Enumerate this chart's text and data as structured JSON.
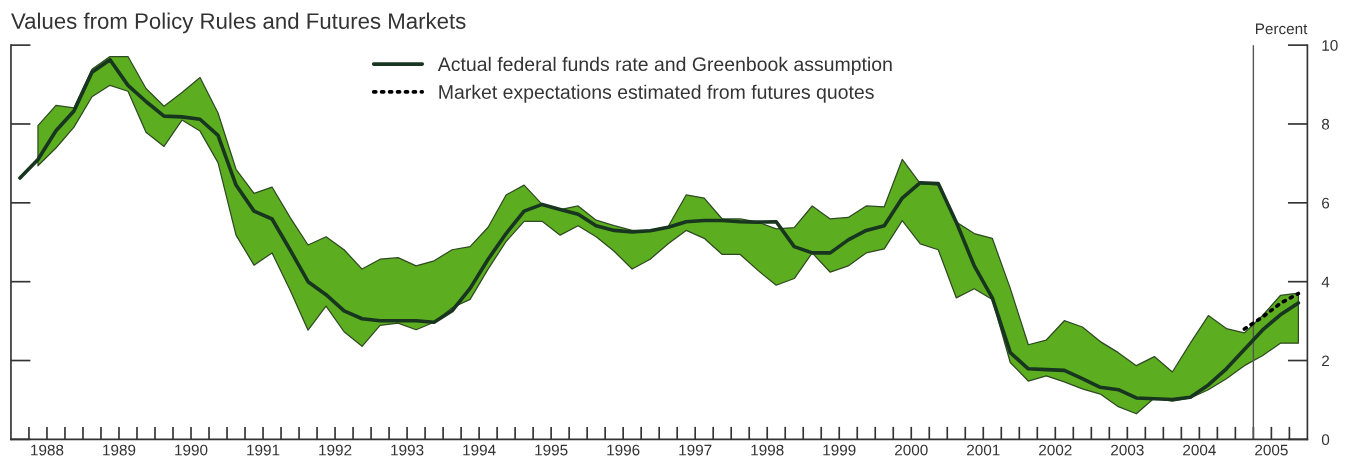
{
  "chart_data": {
    "type": "line",
    "title": "Values from Policy Rules and Futures Markets",
    "ylabel": "Percent",
    "xlim": [
      1988,
      2006
    ],
    "ylim": [
      0,
      10
    ],
    "yticks": [
      0,
      2,
      4,
      6,
      8,
      10
    ],
    "xticks": [
      {
        "value": 1988.25,
        "label": null
      },
      {
        "value": 1988.5,
        "label": "1988"
      },
      {
        "value": 1988.75,
        "label": null
      },
      {
        "value": 1989,
        "label": null
      },
      {
        "value": 1989.25,
        "label": null
      },
      {
        "value": 1989.5,
        "label": "1989"
      },
      {
        "value": 1989.75,
        "label": null
      },
      {
        "value": 1990,
        "label": null
      },
      {
        "value": 1990.25,
        "label": null
      },
      {
        "value": 1990.5,
        "label": "1990"
      },
      {
        "value": 1990.75,
        "label": null
      },
      {
        "value": 1991,
        "label": null
      },
      {
        "value": 1991.25,
        "label": null
      },
      {
        "value": 1991.5,
        "label": "1991"
      },
      {
        "value": 1991.75,
        "label": null
      },
      {
        "value": 1992,
        "label": null
      },
      {
        "value": 1992.25,
        "label": null
      },
      {
        "value": 1992.5,
        "label": "1992"
      },
      {
        "value": 1992.75,
        "label": null
      },
      {
        "value": 1993,
        "label": null
      },
      {
        "value": 1993.25,
        "label": null
      },
      {
        "value": 1993.5,
        "label": "1993"
      },
      {
        "value": 1993.75,
        "label": null
      },
      {
        "value": 1994,
        "label": null
      },
      {
        "value": 1994.25,
        "label": null
      },
      {
        "value": 1994.5,
        "label": "1994"
      },
      {
        "value": 1994.75,
        "label": null
      },
      {
        "value": 1995,
        "label": null
      },
      {
        "value": 1995.25,
        "label": null
      },
      {
        "value": 1995.5,
        "label": "1995"
      },
      {
        "value": 1995.75,
        "label": null
      },
      {
        "value": 1996,
        "label": null
      },
      {
        "value": 1996.25,
        "label": null
      },
      {
        "value": 1996.5,
        "label": "1996"
      },
      {
        "value": 1996.75,
        "label": null
      },
      {
        "value": 1997,
        "label": null
      },
      {
        "value": 1997.25,
        "label": null
      },
      {
        "value": 1997.5,
        "label": "1997"
      },
      {
        "value": 1997.75,
        "label": null
      },
      {
        "value": 1998,
        "label": null
      },
      {
        "value": 1998.25,
        "label": null
      },
      {
        "value": 1998.5,
        "label": "1998"
      },
      {
        "value": 1998.75,
        "label": null
      },
      {
        "value": 1999,
        "label": null
      },
      {
        "value": 1999.25,
        "label": null
      },
      {
        "value": 1999.5,
        "label": "1999"
      },
      {
        "value": 1999.75,
        "label": null
      },
      {
        "value": 2000,
        "label": null
      },
      {
        "value": 2000.25,
        "label": null
      },
      {
        "value": 2000.5,
        "label": "2000"
      },
      {
        "value": 2000.75,
        "label": null
      },
      {
        "value": 2001,
        "label": null
      },
      {
        "value": 2001.25,
        "label": null
      },
      {
        "value": 2001.5,
        "label": "2001"
      },
      {
        "value": 2001.75,
        "label": null
      },
      {
        "value": 2002,
        "label": null
      },
      {
        "value": 2002.25,
        "label": null
      },
      {
        "value": 2002.5,
        "label": "2002"
      },
      {
        "value": 2002.75,
        "label": null
      },
      {
        "value": 2003,
        "label": null
      },
      {
        "value": 2003.25,
        "label": null
      },
      {
        "value": 2003.5,
        "label": "2003"
      },
      {
        "value": 2003.75,
        "label": null
      },
      {
        "value": 2004,
        "label": null
      },
      {
        "value": 2004.25,
        "label": null
      },
      {
        "value": 2004.5,
        "label": "2004"
      },
      {
        "value": 2004.75,
        "label": null
      },
      {
        "value": 2005,
        "label": null
      },
      {
        "value": 2005.25,
        "label": null
      },
      {
        "value": 2005.5,
        "label": "2005"
      },
      {
        "value": 2005.75,
        "label": null
      }
    ],
    "tick_labels": "xy2",
    "grid": false,
    "legend": "top",
    "marker": "none",
    "ref_lines": [
      {
        "axis": "x",
        "value": 2005.25,
        "color": "#555555"
      }
    ],
    "series": [
      {
        "type": "area",
        "color": "#5cae20",
        "x": [
          1988.375,
          1988.625,
          1988.875,
          1989.125,
          1989.375,
          1989.625,
          1989.875,
          1990.125,
          1990.375,
          1990.625,
          1990.875,
          1991.125,
          1991.375,
          1991.625,
          1991.875,
          1992.125,
          1992.375,
          1992.625,
          1992.875,
          1993.125,
          1993.375,
          1993.625,
          1993.875,
          1994.125,
          1994.375,
          1994.625,
          1994.875,
          1995.125,
          1995.375,
          1995.625,
          1995.875,
          1996.125,
          1996.375,
          1996.625,
          1996.875,
          1997.125,
          1997.375,
          1997.625,
          1997.875,
          1998.125,
          1998.375,
          1998.625,
          1998.875,
          1999.125,
          1999.375,
          1999.625,
          1999.875,
          2000.125,
          2000.375,
          2000.625,
          2000.875,
          2001.125,
          2001.375,
          2001.625,
          2001.875,
          2002.125,
          2002.375,
          2002.625,
          2002.875,
          2003.125,
          2003.375,
          2003.625,
          2003.875,
          2004.125,
          2004.375,
          2004.625,
          2004.875,
          2005.125,
          2005.375,
          2005.625,
          2005.875
        ],
        "values": [
          null,
          null,
          null,
          null,
          null,
          null,
          null,
          null,
          null,
          null,
          null,
          null,
          null,
          null,
          null,
          null,
          null,
          null,
          null,
          null,
          null,
          null,
          null,
          null,
          null,
          null,
          null,
          null,
          null,
          null,
          null,
          null,
          null,
          null,
          null,
          null,
          null,
          null,
          null,
          null,
          null,
          null,
          null,
          null,
          null,
          null,
          null,
          null,
          null,
          null,
          null,
          null,
          null,
          null,
          null,
          null,
          null,
          null,
          null,
          null,
          null,
          null,
          null,
          null,
          null,
          null,
          null,
          null,
          null,
          null,
          null
        ],
        "upper": [
          7.96,
          8.47,
          8.41,
          9.39,
          9.71,
          9.71,
          8.9,
          8.45,
          8.8,
          9.18,
          8.28,
          6.85,
          6.24,
          6.4,
          5.63,
          4.93,
          5.14,
          4.81,
          4.32,
          4.57,
          4.61,
          4.4,
          4.53,
          4.81,
          4.89,
          5.38,
          6.2,
          6.45,
          5.96,
          5.83,
          5.92,
          5.56,
          5.42,
          5.3,
          5.3,
          5.4,
          6.2,
          6.12,
          5.59,
          5.59,
          5.51,
          5.34,
          5.37,
          5.92,
          5.59,
          5.63,
          5.92,
          5.9,
          7.1,
          6.49,
          6.45,
          5.51,
          5.22,
          5.1,
          3.83,
          2.4,
          2.52,
          3.01,
          2.85,
          2.48,
          2.2,
          1.87,
          2.1,
          1.71,
          2.44,
          3.14,
          2.81,
          2.7,
          3.14,
          3.65,
          3.71
        ],
        "lower": [
          6.94,
          7.39,
          7.92,
          8.69,
          8.98,
          8.83,
          7.79,
          7.43,
          8.1,
          7.82,
          7.02,
          5.18,
          4.42,
          4.73,
          3.79,
          2.77,
          3.38,
          2.73,
          2.36,
          2.89,
          2.95,
          2.78,
          2.97,
          3.34,
          3.55,
          4.32,
          5.02,
          5.53,
          5.53,
          5.18,
          5.42,
          5.14,
          4.77,
          4.32,
          4.57,
          4.96,
          5.3,
          5.1,
          4.69,
          4.69,
          4.28,
          3.91,
          4.08,
          4.73,
          4.24,
          4.4,
          4.73,
          4.83,
          5.55,
          4.96,
          4.81,
          3.59,
          3.82,
          3.55,
          1.95,
          1.48,
          1.61,
          1.46,
          1.28,
          1.15,
          0.83,
          0.65,
          1.05,
          0.97,
          1.05,
          1.26,
          1.54,
          1.87,
          2.12,
          2.44,
          2.44
        ]
      },
      {
        "name": "Actual federal funds rate and Greenbook assumption",
        "color": "#17351f",
        "line_style": "solid",
        "x": [
          1988.125,
          1988.375,
          1988.625,
          1988.875,
          1989.125,
          1989.375,
          1989.625,
          1989.875,
          1990.125,
          1990.375,
          1990.625,
          1990.875,
          1991.125,
          1991.375,
          1991.625,
          1991.875,
          1992.125,
          1992.375,
          1992.625,
          1992.875,
          1993.125,
          1993.375,
          1993.625,
          1993.875,
          1994.125,
          1994.375,
          1994.625,
          1994.875,
          1995.125,
          1995.375,
          1995.625,
          1995.875,
          1996.125,
          1996.375,
          1996.625,
          1996.875,
          1997.125,
          1997.375,
          1997.625,
          1997.875,
          1998.125,
          1998.375,
          1998.625,
          1998.875,
          1999.125,
          1999.375,
          1999.625,
          1999.875,
          2000.125,
          2000.375,
          2000.625,
          2000.875,
          2001.125,
          2001.375,
          2001.625,
          2001.875,
          2002.125,
          2002.375,
          2002.625,
          2002.875,
          2003.125,
          2003.375,
          2003.625,
          2003.875,
          2004.125,
          2004.375,
          2004.625,
          2004.875,
          2005.125,
          2005.375,
          2005.625,
          2005.875
        ],
        "values": [
          6.63,
          7.1,
          7.83,
          8.33,
          9.31,
          9.63,
          8.98,
          8.57,
          8.2,
          8.18,
          8.12,
          7.71,
          6.45,
          5.79,
          5.59,
          4.81,
          4.0,
          3.67,
          3.26,
          3.06,
          3.01,
          3.01,
          3.01,
          2.97,
          3.26,
          3.83,
          4.57,
          5.22,
          5.79,
          5.96,
          5.83,
          5.71,
          5.42,
          5.3,
          5.26,
          5.29,
          5.38,
          5.52,
          5.55,
          5.55,
          5.52,
          5.51,
          5.52,
          4.89,
          4.73,
          4.73,
          5.06,
          5.3,
          5.42,
          6.12,
          6.51,
          6.49,
          5.51,
          4.4,
          3.59,
          2.2,
          1.79,
          1.77,
          1.75,
          1.54,
          1.32,
          1.26,
          1.05,
          1.03,
          1.01,
          1.07,
          1.38,
          1.79,
          2.28,
          2.77,
          3.16,
          3.46
        ]
      },
      {
        "name": "Market expectations estimated from futures quotes",
        "color": "#000000",
        "line_style": "dotted",
        "x": [
          2005.125,
          2005.375,
          2005.625,
          2005.875
        ],
        "values": [
          2.8,
          3.1,
          3.45,
          3.7
        ]
      }
    ]
  }
}
